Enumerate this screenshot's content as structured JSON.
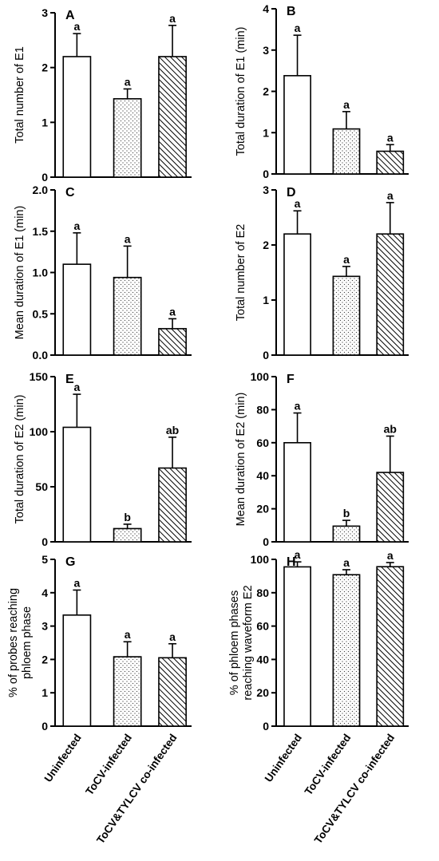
{
  "chart_data": [
    {
      "type": "bar",
      "panel": "A",
      "ylabel": "Total number of E1",
      "categories": [
        "Uninfected",
        "ToCV-infected",
        "ToCV&TYLCV co-infected"
      ],
      "values": [
        2.2,
        1.43,
        2.2
      ],
      "errors": [
        0.42,
        0.18,
        0.57
      ],
      "letters": [
        "a",
        "a",
        "a"
      ],
      "ylim": [
        0,
        3
      ],
      "yticks": [
        0,
        1,
        2,
        3
      ]
    },
    {
      "type": "bar",
      "panel": "B",
      "ylabel": "Total duration of E1 (min)",
      "categories": [
        "Uninfected",
        "ToCV-infected",
        "ToCV&TYLCV co-infected"
      ],
      "values": [
        2.38,
        1.09,
        0.55
      ],
      "errors": [
        0.98,
        0.42,
        0.16
      ],
      "letters": [
        "a",
        "a",
        "a"
      ],
      "ylim": [
        0,
        4
      ],
      "yticks": [
        0,
        1,
        2,
        3,
        4
      ]
    },
    {
      "type": "bar",
      "panel": "C",
      "ylabel": "Mean duration of E1 (min)",
      "categories": [
        "Uninfected",
        "ToCV-infected",
        "ToCV&TYLCV co-infected"
      ],
      "values": [
        1.1,
        0.94,
        0.32
      ],
      "errors": [
        0.38,
        0.38,
        0.12
      ],
      "letters": [
        "a",
        "a",
        "a"
      ],
      "ylim": [
        0,
        2
      ],
      "yticks": [
        0,
        0.5,
        1,
        1.5,
        2
      ],
      "ytick_labels": [
        "0.0",
        "0.5",
        "1.0",
        "1.5",
        "2.0"
      ]
    },
    {
      "type": "bar",
      "panel": "D",
      "ylabel": "Total number of E2",
      "categories": [
        "Uninfected",
        "ToCV-infected",
        "ToCV&TYLCV co-infected"
      ],
      "values": [
        2.2,
        1.43,
        2.2
      ],
      "errors": [
        0.42,
        0.18,
        0.57
      ],
      "letters": [
        "a",
        "a",
        "a"
      ],
      "ylim": [
        0,
        3
      ],
      "yticks": [
        0,
        1,
        2,
        3
      ]
    },
    {
      "type": "bar",
      "panel": "E",
      "ylabel": "Total duration of E2 (min)",
      "categories": [
        "Uninfected",
        "ToCV-infected",
        "ToCV&TYLCV co-infected"
      ],
      "values": [
        104,
        12,
        67
      ],
      "errors": [
        30,
        4,
        28
      ],
      "letters": [
        "a",
        "b",
        "ab"
      ],
      "ylim": [
        0,
        150
      ],
      "yticks": [
        0,
        50,
        100,
        150
      ]
    },
    {
      "type": "bar",
      "panel": "F",
      "ylabel": "Mean duration of E2 (min)",
      "categories": [
        "Uninfected",
        "ToCV-infected",
        "ToCV&TYLCV co-infected"
      ],
      "values": [
        60,
        9.5,
        42
      ],
      "errors": [
        18,
        3.5,
        22
      ],
      "letters": [
        "a",
        "b",
        "ab"
      ],
      "ylim": [
        0,
        100
      ],
      "yticks": [
        0,
        20,
        40,
        60,
        80,
        100
      ]
    },
    {
      "type": "bar",
      "panel": "G",
      "ylabel": "% of probes reaching phloem phase",
      "ylabel_lines": [
        "% of probes reaching",
        "phloem phase"
      ],
      "categories": [
        "Uninfected",
        "ToCV-infected",
        "ToCV&TYLCV co-infected"
      ],
      "values": [
        3.33,
        2.08,
        2.05
      ],
      "errors": [
        0.75,
        0.45,
        0.42
      ],
      "letters": [
        "a",
        "a",
        "a"
      ],
      "ylim": [
        0,
        5
      ],
      "yticks": [
        0,
        1,
        2,
        3,
        4,
        5
      ]
    },
    {
      "type": "bar",
      "panel": "H",
      "ylabel": "% of phloem phases reaching waveform E2",
      "ylabel_lines": [
        "% of phloem phases",
        "reaching waveform E2"
      ],
      "categories": [
        "Uninfected",
        "ToCV-infected",
        "ToCV&TYLCV co-infected"
      ],
      "values": [
        95.5,
        90.8,
        95.6
      ],
      "errors": [
        3,
        3,
        2.5
      ],
      "letters": [
        "a",
        "a",
        "a"
      ],
      "ylim": [
        0,
        100
      ],
      "yticks": [
        0,
        20,
        40,
        60,
        80,
        100
      ]
    }
  ],
  "styles": {
    "fills": [
      "white",
      "dots",
      "hatch"
    ],
    "colors": {
      "axis": "#000000",
      "bar_fill": "#ffffff",
      "pattern": "#000000"
    }
  }
}
